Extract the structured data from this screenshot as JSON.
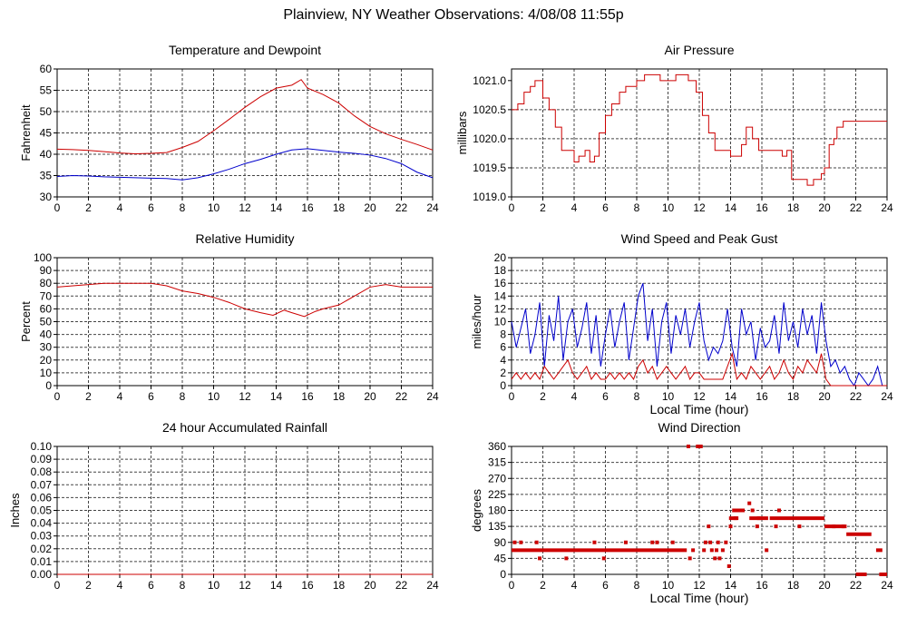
{
  "page": {
    "title": "Plainview, NY Weather Observations: 4/08/08 11:55p"
  },
  "colors": {
    "series_red": "#cc0000",
    "series_blue": "#0000cc",
    "grid": "#444444"
  },
  "chart_data": [
    {
      "id": "temp",
      "type": "line",
      "title": "Temperature and Dewpoint",
      "xlabel": "",
      "ylabel": "Fahrenheit",
      "xlim": [
        0,
        24
      ],
      "ylim": [
        30,
        60
      ],
      "xticks": [
        0,
        2,
        4,
        6,
        8,
        10,
        12,
        14,
        16,
        18,
        20,
        22,
        24
      ],
      "yticks": [
        30,
        35,
        40,
        45,
        50,
        55,
        60
      ],
      "ytick_labels": [
        "30",
        "35",
        "40",
        "45",
        "50",
        "55",
        "60"
      ],
      "grid": true,
      "series": [
        {
          "color": "#cc0000",
          "x": [
            0,
            1,
            2,
            3,
            4,
            5,
            6,
            7,
            8,
            9,
            10,
            11,
            12,
            13,
            14,
            15,
            15.6,
            16,
            17,
            18,
            19,
            20,
            21,
            22,
            23,
            24
          ],
          "y": [
            41.2,
            41.1,
            40.9,
            40.6,
            40.3,
            40.1,
            40.2,
            40.4,
            41.6,
            43.0,
            45.5,
            48.2,
            51.0,
            53.5,
            55.5,
            56.2,
            57.5,
            55.5,
            54.0,
            52.0,
            49.0,
            46.5,
            44.8,
            43.5,
            42.3,
            41.0
          ]
        },
        {
          "color": "#0000cc",
          "x": [
            0,
            1,
            2,
            3,
            4,
            5,
            6,
            7,
            8,
            9,
            10,
            11,
            12,
            13,
            14,
            15,
            16,
            17,
            18,
            19,
            20,
            21,
            22,
            23,
            24
          ],
          "y": [
            34.8,
            35.0,
            34.9,
            34.7,
            34.6,
            34.5,
            34.4,
            34.3,
            34.0,
            34.5,
            35.4,
            36.5,
            37.8,
            38.8,
            40.0,
            41.0,
            41.3,
            40.9,
            40.5,
            40.2,
            39.8,
            39.0,
            37.8,
            35.8,
            34.5
          ]
        }
      ]
    },
    {
      "id": "pressure",
      "type": "line",
      "title": "Air Pressure",
      "xlabel": "",
      "ylabel": "millibars",
      "xlim": [
        0,
        24
      ],
      "ylim": [
        1019.0,
        1021.2
      ],
      "xticks": [
        0,
        2,
        4,
        6,
        8,
        10,
        12,
        14,
        16,
        18,
        20,
        22,
        24
      ],
      "yticks": [
        1019.0,
        1019.5,
        1020.0,
        1020.5,
        1021.0
      ],
      "ytick_labels": [
        "1019.0",
        "1019.5",
        "1020.0",
        "1020.5",
        "1021.0"
      ],
      "grid": true,
      "series": [
        {
          "color": "#cc0000",
          "step": true,
          "x": [
            0,
            0.4,
            0.8,
            1.2,
            1.5,
            2.0,
            2.4,
            2.8,
            3.2,
            3.5,
            3.8,
            4.0,
            4.3,
            4.7,
            5.0,
            5.3,
            5.6,
            6.0,
            6.4,
            6.9,
            7.3,
            8.0,
            8.5,
            9.5,
            10.5,
            11.3,
            11.8,
            12.2,
            12.6,
            13.0,
            14.0,
            14.7,
            15.0,
            15.4,
            15.8,
            16.5,
            17.3,
            17.6,
            17.9,
            18.6,
            18.9,
            19.3,
            19.8,
            20.0,
            20.3,
            20.6,
            20.8,
            21.2,
            22.0,
            24
          ],
          "y": [
            1020.5,
            1020.6,
            1020.8,
            1020.9,
            1021.0,
            1020.7,
            1020.5,
            1020.2,
            1019.8,
            1019.8,
            1019.8,
            1019.6,
            1019.7,
            1019.8,
            1019.6,
            1019.7,
            1020.1,
            1020.4,
            1020.6,
            1020.8,
            1020.9,
            1021.0,
            1021.1,
            1021.0,
            1021.1,
            1021.0,
            1020.8,
            1020.4,
            1020.1,
            1019.8,
            1019.7,
            1019.9,
            1020.2,
            1020.0,
            1019.8,
            1019.8,
            1019.7,
            1019.8,
            1019.3,
            1019.3,
            1019.2,
            1019.3,
            1019.4,
            1019.5,
            1019.9,
            1020.0,
            1020.2,
            1020.3,
            1020.3,
            1020.3
          ]
        }
      ]
    },
    {
      "id": "humidity",
      "type": "line",
      "title": "Relative Humidity",
      "xlabel": "",
      "ylabel": "Percent",
      "xlim": [
        0,
        24
      ],
      "ylim": [
        0,
        100
      ],
      "xticks": [
        0,
        2,
        4,
        6,
        8,
        10,
        12,
        14,
        16,
        18,
        20,
        22,
        24
      ],
      "yticks": [
        0,
        10,
        20,
        30,
        40,
        50,
        60,
        70,
        80,
        90,
        100
      ],
      "ytick_labels": [
        "0",
        "10",
        "20",
        "30",
        "40",
        "50",
        "60",
        "70",
        "80",
        "90",
        "100"
      ],
      "grid": true,
      "series": [
        {
          "color": "#cc0000",
          "x": [
            0,
            1,
            2,
            3,
            4,
            5,
            6,
            7,
            8,
            9,
            10,
            11,
            12,
            13,
            13.8,
            14.5,
            15,
            15.8,
            16.5,
            17,
            18,
            19,
            20,
            21,
            22,
            23,
            24
          ],
          "y": [
            77,
            78,
            79,
            80,
            80,
            80,
            80,
            78,
            74,
            72,
            69,
            65,
            60,
            57,
            55,
            59,
            57,
            54,
            58,
            60,
            63,
            70,
            77,
            79,
            77,
            77,
            77
          ]
        }
      ]
    },
    {
      "id": "wind",
      "type": "line",
      "title": "Wind Speed and Peak Gust",
      "xlabel": "Local Time (hour)",
      "ylabel": "miles/hour",
      "xlim": [
        0,
        24
      ],
      "ylim": [
        0,
        20
      ],
      "xticks": [
        0,
        2,
        4,
        6,
        8,
        10,
        12,
        14,
        16,
        18,
        20,
        22,
        24
      ],
      "yticks": [
        0,
        2,
        4,
        6,
        8,
        10,
        12,
        14,
        16,
        18,
        20
      ],
      "ytick_labels": [
        "0",
        "2",
        "4",
        "6",
        "8",
        "10",
        "12",
        "14",
        "16",
        "18",
        "20"
      ],
      "grid": true,
      "series": [
        {
          "color": "#0000cc",
          "x": [
            0,
            0.3,
            0.6,
            0.9,
            1.2,
            1.5,
            1.8,
            2.1,
            2.4,
            2.7,
            3.0,
            3.3,
            3.6,
            3.9,
            4.2,
            4.5,
            4.8,
            5.1,
            5.4,
            5.7,
            6.0,
            6.3,
            6.6,
            6.9,
            7.2,
            7.5,
            7.8,
            8.1,
            8.4,
            8.7,
            9.0,
            9.3,
            9.6,
            9.9,
            10.2,
            10.5,
            10.8,
            11.1,
            11.4,
            11.7,
            12.0,
            12.3,
            12.6,
            12.9,
            13.2,
            13.5,
            13.8,
            14.1,
            14.4,
            14.7,
            15.0,
            15.3,
            15.6,
            15.9,
            16.2,
            16.5,
            16.8,
            17.1,
            17.4,
            17.7,
            18.0,
            18.3,
            18.6,
            18.9,
            19.2,
            19.5,
            19.8,
            20.1,
            20.4,
            20.7,
            21.0,
            21.3,
            21.6,
            21.9,
            22.2,
            22.5,
            22.8,
            23.1,
            23.4,
            23.7,
            24.0
          ],
          "y": [
            10,
            6,
            9,
            12,
            5,
            8,
            13,
            3,
            11,
            7,
            14,
            4,
            10,
            12,
            6,
            9,
            13,
            5,
            11,
            3,
            8,
            12,
            6,
            10,
            13,
            4,
            9,
            14,
            16,
            7,
            12,
            3,
            10,
            13,
            5,
            11,
            8,
            12,
            6,
            10,
            13,
            7,
            4,
            6,
            5,
            7,
            12,
            6,
            3,
            12,
            8,
            10,
            4,
            9,
            6,
            7,
            11,
            5,
            13,
            7,
            10,
            6,
            12,
            8,
            11,
            5,
            13,
            7,
            3,
            4,
            2,
            3,
            1,
            0,
            2,
            1,
            0,
            1,
            3,
            0,
            0
          ]
        },
        {
          "color": "#cc0000",
          "x": [
            0,
            0.3,
            0.6,
            0.9,
            1.2,
            1.5,
            1.8,
            2.1,
            2.4,
            2.7,
            3.0,
            3.3,
            3.6,
            3.9,
            4.2,
            4.5,
            4.8,
            5.1,
            5.4,
            5.7,
            6.0,
            6.3,
            6.6,
            6.9,
            7.2,
            7.5,
            7.8,
            8.1,
            8.4,
            8.7,
            9.0,
            9.3,
            9.6,
            9.9,
            10.2,
            10.5,
            10.8,
            11.1,
            11.4,
            11.7,
            12.0,
            12.3,
            12.6,
            12.9,
            13.2,
            13.5,
            13.8,
            14.1,
            14.4,
            14.7,
            15.0,
            15.3,
            15.6,
            15.9,
            16.2,
            16.5,
            16.8,
            17.1,
            17.4,
            17.7,
            18.0,
            18.3,
            18.6,
            18.9,
            19.2,
            19.5,
            19.8,
            20.1,
            20.4,
            20.7,
            21.0,
            21.3,
            21.6,
            21.9,
            22.2,
            22.5,
            22.8,
            23.1,
            23.4,
            23.7,
            24.0
          ],
          "y": [
            1,
            2,
            1,
            2,
            1,
            2,
            1,
            3,
            2,
            1,
            2,
            3,
            4,
            2,
            1,
            2,
            3,
            1,
            2,
            1,
            1,
            2,
            1,
            2,
            1,
            2,
            1,
            3,
            4,
            2,
            3,
            1,
            2,
            3,
            2,
            1,
            2,
            3,
            1,
            2,
            2,
            1,
            1,
            1,
            1,
            1,
            3,
            5,
            1,
            2,
            1,
            3,
            2,
            1,
            2,
            3,
            1,
            2,
            4,
            2,
            1,
            3,
            2,
            4,
            3,
            2,
            5,
            1,
            0,
            0,
            0,
            0,
            0,
            0,
            0,
            0,
            0,
            0,
            0,
            0,
            0
          ]
        }
      ]
    },
    {
      "id": "rain",
      "type": "line",
      "title": "24 hour Accumulated Rainfall",
      "xlabel": "",
      "ylabel": "Inches",
      "xlim": [
        0,
        24
      ],
      "ylim": [
        0,
        0.1
      ],
      "xticks": [
        0,
        2,
        4,
        6,
        8,
        10,
        12,
        14,
        16,
        18,
        20,
        22,
        24
      ],
      "yticks": [
        0,
        0.01,
        0.02,
        0.03,
        0.04,
        0.05,
        0.06,
        0.07,
        0.08,
        0.09,
        0.1
      ],
      "ytick_labels": [
        "0.00",
        "0.01",
        "0.02",
        "0.03",
        "0.04",
        "0.05",
        "0.06",
        "0.07",
        "0.08",
        "0.09",
        "0.10"
      ],
      "grid": true,
      "series": [
        {
          "color": "#cc0000",
          "x": [
            0,
            24
          ],
          "y": [
            0,
            0
          ]
        }
      ]
    },
    {
      "id": "direction",
      "type": "scatter",
      "title": "Wind Direction",
      "xlabel": "Local Time (hour)",
      "ylabel": "degrees",
      "xlim": [
        0,
        24
      ],
      "ylim": [
        0,
        360
      ],
      "xticks": [
        0,
        2,
        4,
        6,
        8,
        10,
        12,
        14,
        16,
        18,
        20,
        22,
        24
      ],
      "yticks": [
        0,
        45,
        90,
        135,
        180,
        225,
        270,
        315,
        360
      ],
      "ytick_labels": [
        "0",
        "45",
        "90",
        "135",
        "180",
        "225",
        "270",
        "315",
        "360"
      ],
      "grid": true,
      "segments": [
        {
          "x": [
            0,
            11.2
          ],
          "y": 68
        },
        {
          "x": [
            13.9,
            14.5
          ],
          "y": 158
        },
        {
          "x": [
            14.1,
            14.9
          ],
          "y": 180
        },
        {
          "x": [
            15.2,
            16.4
          ],
          "y": 158
        },
        {
          "x": [
            16.5,
            20.0
          ],
          "y": 158
        },
        {
          "x": [
            20.0,
            21.2
          ],
          "y": 135
        },
        {
          "x": [
            21.4,
            23.0
          ],
          "y": 113
        },
        {
          "x": [
            22.0,
            22.7
          ],
          "y": 0
        },
        {
          "x": [
            23.3,
            23.7
          ],
          "y": 68
        },
        {
          "x": [
            23.5,
            24.0
          ],
          "y": 0
        }
      ],
      "series": [
        {
          "color": "#cc0000",
          "x": [
            0.2,
            0.6,
            1.6,
            1.8,
            3.5,
            5.3,
            5.9,
            7.3,
            9.0,
            9.3,
            10.3,
            11.3,
            11.4,
            11.6,
            11.9,
            12.1,
            12.3,
            12.4,
            12.6,
            12.7,
            12.8,
            13.0,
            13.1,
            13.2,
            13.3,
            13.5,
            13.7,
            13.9,
            14.0,
            14.3,
            15.2,
            15.4,
            15.7,
            15.8,
            16.3,
            16.9,
            17.1,
            18.4,
            20.6,
            21.2,
            21.3
          ],
          "y": [
            90,
            90,
            90,
            45,
            45,
            90,
            45,
            90,
            90,
            90,
            90,
            360,
            45,
            68,
            360,
            360,
            68,
            90,
            135,
            90,
            68,
            45,
            68,
            90,
            45,
            68,
            90,
            23,
            135,
            158,
            200,
            180,
            135,
            158,
            68,
            135,
            180,
            135,
            135,
            135,
            135
          ]
        }
      ]
    }
  ]
}
